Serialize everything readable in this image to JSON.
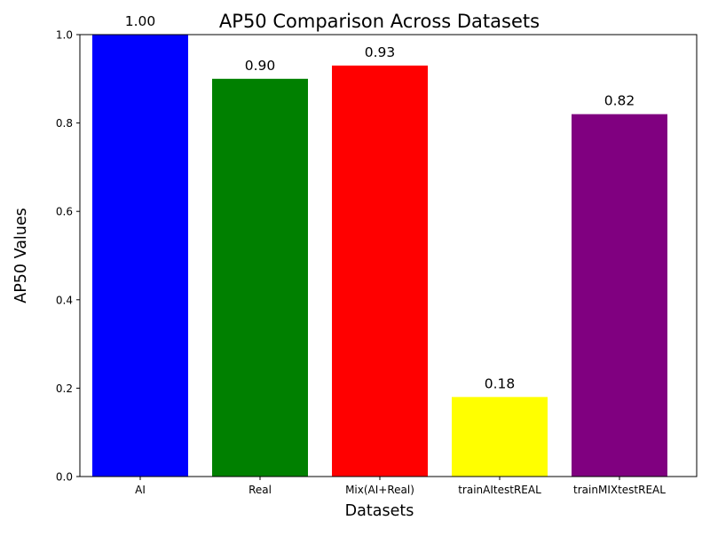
{
  "chart_data": {
    "type": "bar",
    "title": "AP50 Comparison Across Datasets",
    "xlabel": "Datasets",
    "ylabel": "AP50 Values",
    "categories": [
      "AI",
      "Real",
      "Mix(AI+Real)",
      "trainAItestREAL",
      "trainMIXtestREAL"
    ],
    "values": [
      1.0,
      0.9,
      0.93,
      0.18,
      0.82
    ],
    "value_labels": [
      "1.00",
      "0.90",
      "0.93",
      "0.18",
      "0.82"
    ],
    "colors": [
      "#0000ff",
      "#008000",
      "#ff0000",
      "#ffff00",
      "#800080"
    ],
    "ylim": [
      0,
      1.0
    ],
    "yticks": [
      0.0,
      0.2,
      0.4,
      0.6,
      0.8,
      1.0
    ],
    "ytick_labels": [
      "0.0",
      "0.2",
      "0.4",
      "0.6",
      "0.8",
      "1.0"
    ],
    "grid": false,
    "legend": "none"
  }
}
